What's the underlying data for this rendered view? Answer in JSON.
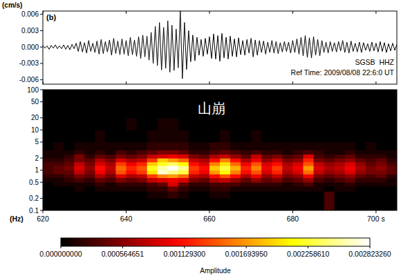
{
  "chart_data": [
    {
      "type": "line",
      "title": "(b)",
      "ylabel": "(cm/s)",
      "annotations": [
        "SGSB  HHZ",
        "Ref Time: 2009/08/08 22:6:0 UT"
      ],
      "color": "#000000",
      "x": [
        620,
        620.5,
        621,
        621.5,
        622,
        622.5,
        623,
        623.5,
        624,
        624.5,
        625,
        625.5,
        626,
        626.5,
        627,
        627.5,
        628,
        628.5,
        629,
        629.5,
        630,
        630.5,
        631,
        631.5,
        632,
        632.5,
        633,
        633.5,
        634,
        634.5,
        635,
        635.5,
        636,
        636.5,
        637,
        637.5,
        638,
        638.5,
        639,
        639.5,
        640,
        640.5,
        641,
        641.5,
        642,
        642.5,
        643,
        643.5,
        644,
        644.5,
        645,
        645.5,
        646,
        646.5,
        647,
        647.5,
        648,
        648.5,
        649,
        649.5,
        650,
        650.5,
        651,
        651.5,
        652,
        652.5,
        653,
        653.5,
        654,
        654.5,
        655,
        655.5,
        656,
        656.5,
        657,
        657.5,
        658,
        658.5,
        659,
        659.5,
        660,
        660.5,
        661,
        661.5,
        662,
        662.5,
        663,
        663.5,
        664,
        664.5,
        665,
        665.5,
        666,
        666.5,
        667,
        667.5,
        668,
        668.5,
        669,
        669.5,
        670,
        670.5,
        671,
        671.5,
        672,
        672.5,
        673,
        673.5,
        674,
        674.5,
        675,
        675.5,
        676,
        676.5,
        677,
        677.5,
        678,
        678.5,
        679,
        679.5,
        680,
        680.5,
        681,
        681.5,
        682,
        682.5,
        683,
        683.5,
        684,
        684.5,
        685,
        685.5,
        686,
        686.5,
        687,
        687.5,
        688,
        688.5,
        689,
        689.5,
        690,
        690.5,
        691,
        691.5,
        692,
        692.5,
        693,
        693.5,
        694,
        694.5,
        695,
        695.5,
        696,
        696.5,
        697,
        697.5,
        698,
        698.5,
        699,
        699.5,
        700,
        700.5,
        701,
        701.5,
        702,
        702.5,
        703,
        703.5,
        704,
        704.5,
        705
      ],
      "values": [
        0.0003,
        -0.0002,
        0.0002,
        -0.0004,
        0.0003,
        -0.0002,
        0.0004,
        -0.0003,
        0.0002,
        -0.0003,
        0.0004,
        -0.0004,
        0.0003,
        -0.0005,
        0.0005,
        -0.0003,
        0.0007,
        -0.0008,
        0.001,
        -0.0009,
        0.0008,
        -0.0011,
        0.0012,
        -0.0008,
        0.0007,
        -0.001,
        0.0011,
        -0.0013,
        0.0014,
        -0.0012,
        0.001,
        -0.0009,
        0.0013,
        -0.0015,
        0.0016,
        -0.0012,
        0.0011,
        -0.0014,
        0.0015,
        -0.0013,
        0.0012,
        -0.0016,
        0.0018,
        -0.0014,
        0.0013,
        -0.0017,
        0.0019,
        -0.0021,
        0.0022,
        -0.0018,
        0.002,
        -0.0024,
        0.0027,
        -0.003,
        0.0038,
        -0.0034,
        0.0045,
        -0.0042,
        0.0036,
        -0.0039,
        0.0048,
        -0.0046,
        0.004,
        -0.0043,
        0.0033,
        -0.0038,
        0.0066,
        -0.0058,
        0.0045,
        -0.0041,
        0.003,
        -0.0027,
        0.0022,
        -0.0025,
        0.0018,
        -0.0015,
        0.0014,
        -0.0017,
        0.0016,
        -0.0013,
        0.0019,
        -0.0021,
        0.0024,
        -0.0022,
        0.0021,
        -0.0026,
        0.0025,
        -0.002,
        0.0018,
        -0.0022,
        0.002,
        -0.0017,
        0.0015,
        -0.0018,
        0.0017,
        -0.0014,
        0.0012,
        -0.0015,
        0.0014,
        -0.0011,
        0.0016,
        -0.0018,
        0.0013,
        -0.0015,
        0.0012,
        -0.001,
        0.0011,
        -0.0013,
        0.0009,
        -0.001,
        0.0012,
        -0.0011,
        0.001,
        -0.0012,
        0.0008,
        -0.0009,
        0.001,
        -0.0008,
        0.0009,
        -0.0011,
        0.0012,
        -0.001,
        0.0015,
        -0.0013,
        0.0018,
        -0.0016,
        0.0021,
        -0.0019,
        0.0017,
        -0.002,
        0.0019,
        -0.0015,
        0.0014,
        -0.0016,
        0.0012,
        -0.001,
        0.0009,
        -0.0011,
        0.001,
        -0.0008,
        0.0008,
        -0.0009,
        0.001,
        -0.0007,
        0.0012,
        -0.001,
        0.0009,
        -0.0011,
        0.0011,
        -0.0008,
        0.0007,
        -0.0009,
        0.0009,
        -0.001,
        0.0008,
        -0.0006,
        0.0006,
        -0.0008,
        0.0009,
        -0.0007,
        0.0007,
        -0.0009,
        0.001,
        -0.0008,
        0.0008,
        -0.001,
        0.0006,
        -0.0007,
        0.0007,
        -0.0006,
        0.0005
      ],
      "xlim": [
        620,
        705
      ],
      "ylim": [
        -0.0068,
        0.0066
      ],
      "xticks": [
        620,
        640,
        660,
        680,
        700
      ],
      "yticks": [
        -0.006,
        -0.003,
        {
          "value": 0,
          "label": "0.000"
        },
        0.003,
        0.006
      ],
      "tick_labels": "y"
    },
    {
      "type": "heatmap",
      "title": "山崩",
      "ylabel": "(Hz)",
      "log": "y",
      "xlim": [
        620,
        705
      ],
      "ylim": [
        0.1,
        100
      ],
      "xticks": [
        620,
        640,
        660,
        680,
        {
          "value": 700,
          "label": "700 s"
        }
      ],
      "yticks": [
        0.1,
        0.2,
        0.5,
        1,
        2,
        5,
        10,
        20,
        50,
        100
      ],
      "x_edges": [
        620,
        622.5,
        625,
        627.5,
        630,
        632.5,
        635,
        637.5,
        640,
        642.5,
        645,
        647.5,
        650,
        652.5,
        655,
        657.5,
        660,
        662.5,
        665,
        667.5,
        670,
        672.5,
        675,
        677.5,
        680,
        682.5,
        685,
        687.5,
        690,
        692.5,
        695,
        697.5,
        700,
        702.5,
        705
      ],
      "y_edges": [
        0.1,
        0.2,
        0.3,
        0.4,
        0.5,
        0.65,
        0.8,
        1,
        1.3,
        1.6,
        2,
        2.5,
        3.2,
        5,
        10,
        20,
        100
      ],
      "cells": [
        [
          0,
          0,
          0,
          0,
          0,
          0,
          0,
          0,
          0,
          0,
          0,
          0,
          0,
          0,
          0,
          0,
          0,
          0,
          0,
          0,
          0,
          0,
          0,
          0,
          0,
          0,
          0,
          0.0003,
          0,
          0,
          0,
          0,
          0,
          0
        ],
        [
          0,
          0,
          0,
          0,
          0,
          0,
          0,
          0,
          0,
          0,
          0.0001,
          0.0001,
          0.0002,
          0.0001,
          0,
          0,
          0.0001,
          0.0001,
          0,
          0,
          0,
          0,
          0,
          0,
          0,
          0,
          0,
          0.0003,
          0,
          0,
          0,
          0,
          0,
          0
        ],
        [
          0,
          0,
          0,
          0.0001,
          0,
          0.0001,
          0.0001,
          0.0001,
          0.0001,
          0.0001,
          0.0002,
          0.0002,
          0.0004,
          0.0002,
          0.0001,
          0.0001,
          0.0002,
          0.0002,
          0.0001,
          0.0001,
          0.0001,
          0.0001,
          0.0001,
          0.0001,
          0.0001,
          0.0001,
          0.0001,
          0,
          0.0001,
          0.0001,
          0,
          0,
          0,
          0
        ],
        [
          0,
          0.0001,
          0.0001,
          0.0001,
          0.0001,
          0.0002,
          0.0001,
          0.0002,
          0.0002,
          0.0002,
          0.0003,
          0.0004,
          0.0009,
          0.0004,
          0.0002,
          0.0002,
          0.0003,
          0.0003,
          0.0003,
          0.0002,
          0.0002,
          0.0002,
          0.0002,
          0.0001,
          0.0002,
          0.0003,
          0.0001,
          0.0001,
          0.0001,
          0.0002,
          0.0001,
          0.0001,
          0.0001,
          0.0001
        ],
        [
          0.0001,
          0.0001,
          0.0002,
          0.0003,
          0.0002,
          0.0004,
          0.0003,
          0.0005,
          0.0004,
          0.0005,
          0.0008,
          0.0009,
          0.001,
          0.0009,
          0.0005,
          0.0004,
          0.0007,
          0.0008,
          0.0006,
          0.0004,
          0.0006,
          0.0004,
          0.0005,
          0.0003,
          0.0004,
          0.0006,
          0.0003,
          0.0002,
          0.0003,
          0.0004,
          0.0002,
          0.0002,
          0.0002,
          0.0001
        ],
        [
          0.0002,
          0.0002,
          0.0003,
          0.0005,
          0.0004,
          0.0007,
          0.0005,
          0.0009,
          0.0007,
          0.0008,
          0.0013,
          0.0016,
          0.0017,
          0.0015,
          0.0008,
          0.0007,
          0.0011,
          0.0014,
          0.0011,
          0.0007,
          0.001,
          0.0006,
          0.0008,
          0.0005,
          0.0006,
          0.001,
          0.0005,
          0.0004,
          0.0005,
          0.0006,
          0.0004,
          0.0003,
          0.0004,
          0.0002
        ],
        [
          0.0003,
          0.0004,
          0.0004,
          0.0008,
          0.0005,
          0.001,
          0.0007,
          0.0014,
          0.0011,
          0.0013,
          0.002,
          0.0027,
          0.0025,
          0.0023,
          0.0012,
          0.001,
          0.0017,
          0.0021,
          0.0016,
          0.0011,
          0.0014,
          0.0009,
          0.0012,
          0.0007,
          0.0009,
          0.0015,
          0.0008,
          0.0006,
          0.0007,
          0.0009,
          0.0006,
          0.0005,
          0.0005,
          0.0004
        ],
        [
          0.0003,
          0.0004,
          0.0005,
          0.0009,
          0.0006,
          0.0011,
          0.0008,
          0.0015,
          0.0012,
          0.0014,
          0.0022,
          0.0026,
          0.0028,
          0.0025,
          0.0013,
          0.0011,
          0.0019,
          0.0023,
          0.0018,
          0.0012,
          0.0016,
          0.001,
          0.0013,
          0.0008,
          0.001,
          0.0017,
          0.0009,
          0.0007,
          0.0008,
          0.001,
          0.0007,
          0.0005,
          0.0006,
          0.0004
        ],
        [
          0.0003,
          0.0003,
          0.0004,
          0.0008,
          0.0005,
          0.0009,
          0.0007,
          0.0013,
          0.001,
          0.0012,
          0.0019,
          0.0022,
          0.0024,
          0.0021,
          0.0011,
          0.0009,
          0.0016,
          0.002,
          0.0015,
          0.001,
          0.0014,
          0.0009,
          0.0011,
          0.0007,
          0.0009,
          0.0014,
          0.0008,
          0.0006,
          0.0007,
          0.0009,
          0.0006,
          0.0004,
          0.0005,
          0.0003
        ],
        [
          0.0002,
          0.0002,
          0.0003,
          0.0005,
          0.0004,
          0.0007,
          0.0005,
          0.0009,
          0.0007,
          0.0008,
          0.0013,
          0.0019,
          0.0017,
          0.0015,
          0.0008,
          0.0007,
          0.0011,
          0.0016,
          0.0011,
          0.0007,
          0.001,
          0.0006,
          0.0008,
          0.0005,
          0.0006,
          0.0012,
          0.0005,
          0.0004,
          0.0005,
          0.0006,
          0.0004,
          0.0003,
          0.0004,
          0.0002
        ],
        [
          0.0001,
          0.0001,
          0.0002,
          0.0005,
          0.0002,
          0.0004,
          0.0003,
          0.0005,
          0.0004,
          0.0005,
          0.0008,
          0.0009,
          0.001,
          0.0009,
          0.0005,
          0.0004,
          0.0007,
          0.0008,
          0.0006,
          0.0004,
          0.0008,
          0.0004,
          0.0005,
          0.0003,
          0.0004,
          0.0009,
          0.0003,
          0.0002,
          0.0003,
          0.0004,
          0.0002,
          0.0002,
          0.0002,
          0.0001
        ],
        [
          0.0001,
          0.0001,
          0.0001,
          0.0002,
          0.0001,
          0.0002,
          0.0001,
          0.0003,
          0.0002,
          0.0003,
          0.0004,
          0.0005,
          0.0005,
          0.0004,
          0.0002,
          0.0002,
          0.0003,
          0.0004,
          0.0003,
          0.0002,
          0.0003,
          0.0002,
          0.0002,
          0.0001,
          0.0002,
          0.0003,
          0.0002,
          0.0001,
          0.0001,
          0.0002,
          0.0001,
          0.0001,
          0.0001,
          0.0001
        ],
        [
          0,
          0.0001,
          0,
          0.0001,
          0.0001,
          0.0001,
          0.0001,
          0.0001,
          0.0001,
          0.0001,
          0.0002,
          0.0002,
          0.0002,
          0.0002,
          0.0001,
          0.0001,
          0.0002,
          0.0002,
          0.0001,
          0.0001,
          0.0001,
          0.0001,
          0.0001,
          0.0001,
          0.0001,
          0.0001,
          0.0001,
          0.0001,
          0.0001,
          0.0001,
          0,
          0.0001,
          0,
          0
        ],
        [
          0,
          0,
          0,
          0,
          0,
          0.0001,
          0,
          0,
          0,
          0,
          0.0001,
          0.0001,
          0.0001,
          0.0001,
          0,
          0,
          0,
          0.0001,
          0,
          0,
          0.0001,
          0,
          0,
          0,
          0,
          0,
          0,
          0,
          0,
          0,
          0,
          0,
          0,
          0
        ],
        [
          0,
          0,
          0,
          0,
          0,
          0,
          0,
          0,
          0.0001,
          0,
          0,
          0.0001,
          0.0001,
          0,
          0,
          0,
          0,
          0,
          0,
          0,
          0,
          0,
          0,
          0,
          0,
          0,
          0,
          0,
          0,
          0,
          0,
          0,
          0,
          0
        ],
        [
          0,
          0,
          0,
          0,
          0,
          0,
          0,
          0,
          0,
          0,
          0,
          0,
          0,
          0,
          0,
          0,
          0,
          0,
          0,
          0,
          0,
          0,
          0,
          0,
          0,
          0,
          0,
          0,
          0,
          0,
          0,
          0,
          0,
          0
        ]
      ],
      "colorbar": {
        "label": "Amplitude",
        "range": [
          0,
          0.00282326
        ],
        "ticks": [
          {
            "value": 0,
            "label": "0.000000000"
          },
          0.000564651,
          {
            "value": 0.0011293,
            "label": "0.001129300"
          },
          {
            "value": 0.00169395,
            "label": "0.001693950"
          },
          {
            "value": 0.00225861,
            "label": "0.002258610"
          },
          {
            "value": 0.00282326,
            "label": "0.002823260"
          }
        ]
      }
    }
  ]
}
